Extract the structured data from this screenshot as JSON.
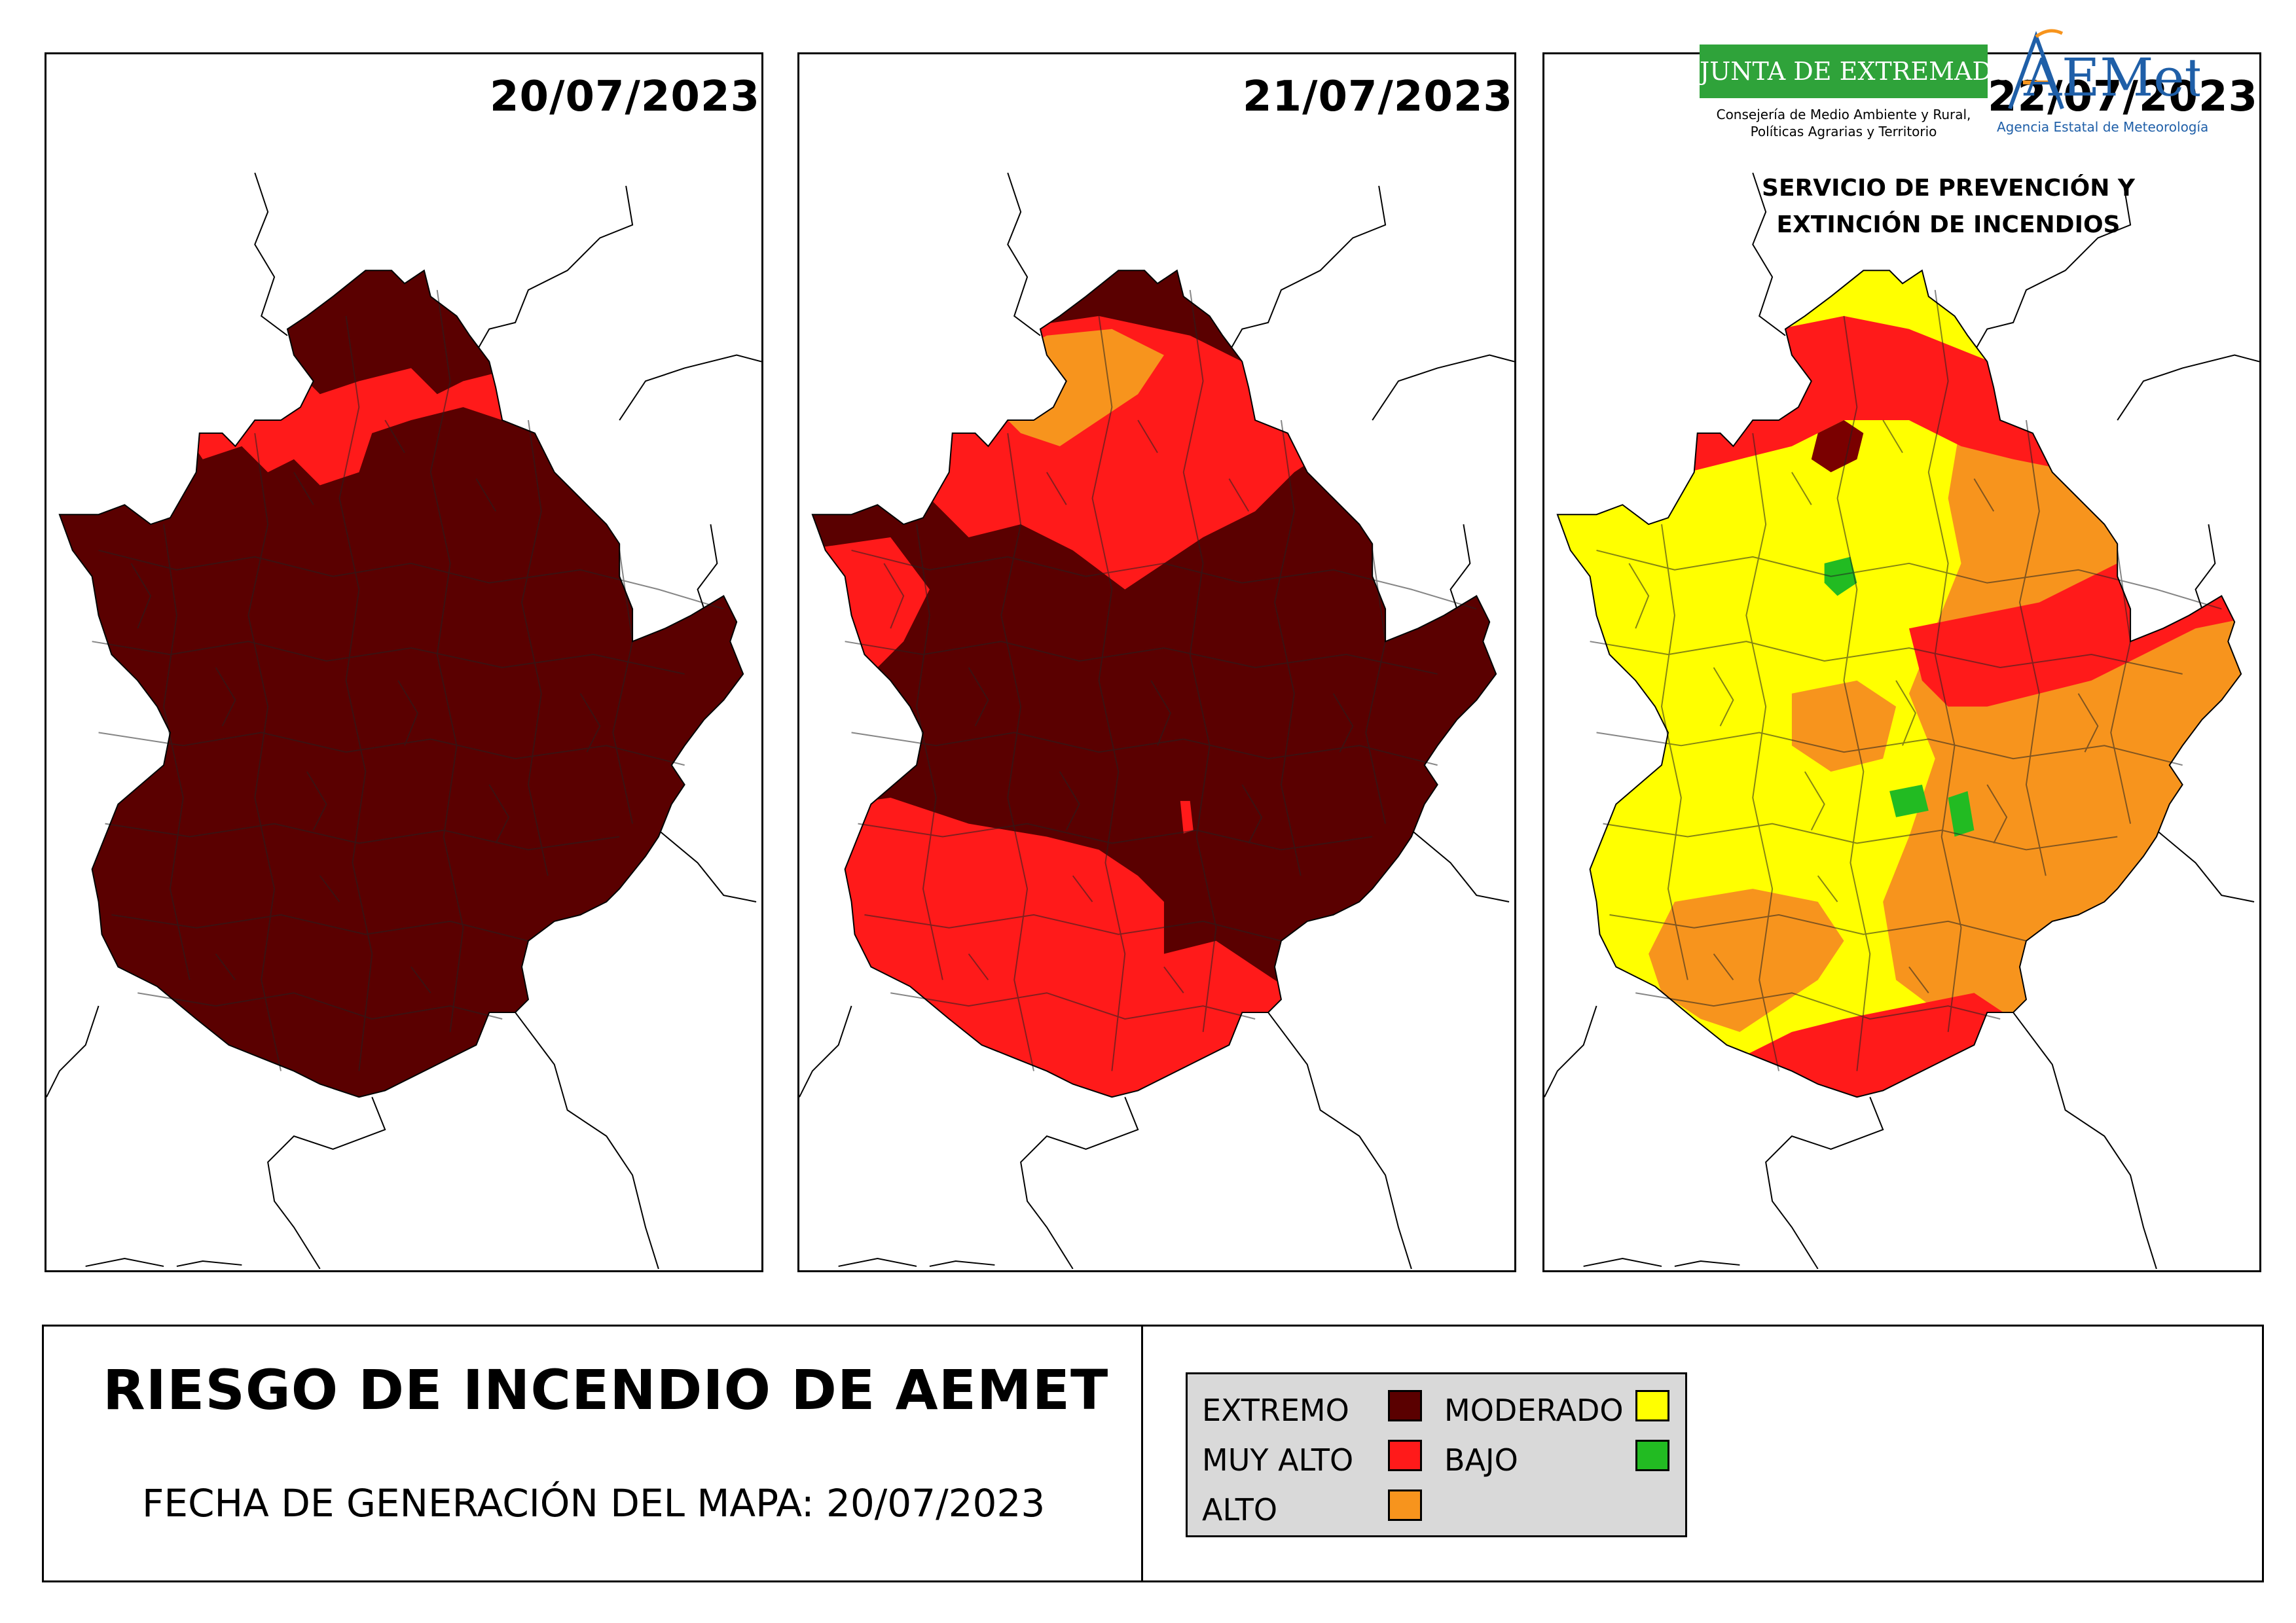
{
  "maps": [
    {
      "date": "20/07/2023",
      "dominant_level": "EXTREMO"
    },
    {
      "date": "21/07/2023",
      "dominant_level": "EXTREMO"
    },
    {
      "date": "22/07/2023",
      "dominant_level": "MODERADO"
    }
  ],
  "title": "RIESGO DE INCENDIO DE AEMET",
  "generation_date": "FECHA DE GENERACIÓN DEL MAPA: 20/07/2023",
  "legend": {
    "extremo": {
      "label": "EXTREMO",
      "color": "#5a0000"
    },
    "muy_alto": {
      "label": "MUY ALTO",
      "color": "#ff1a1a"
    },
    "alto": {
      "label": "ALTO",
      "color": "#f7941d"
    },
    "moderado": {
      "label": "MODERADO",
      "color": "#ffff00"
    },
    "bajo": {
      "label": "BAJO",
      "color": "#22bb22"
    }
  },
  "logos": {
    "junta_name": "JUNTA DE EXTREMADURA",
    "junta_line1": "Consejería de Medio Ambiente y Rural,",
    "junta_line2": "Políticas Agrarias y Territorio",
    "aemet_name": "AEMet",
    "aemet_sub": "Agencia Estatal de Meteorología"
  },
  "service": {
    "line1": "SERVICIO DE PREVENCIÓN Y",
    "line2": "EXTINCIÓN DE INCENDIOS"
  }
}
